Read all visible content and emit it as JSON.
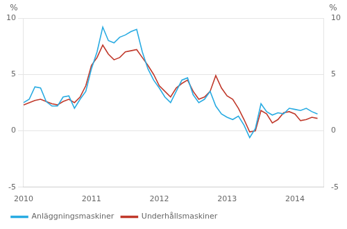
{
  "chart_data": {
    "type": "line",
    "ylabel": "%",
    "y2label": "%",
    "x": [
      2010.0,
      2010.083,
      2010.167,
      2010.25,
      2010.333,
      2010.417,
      2010.5,
      2010.583,
      2010.667,
      2010.75,
      2010.833,
      2010.917,
      2011.0,
      2011.083,
      2011.167,
      2011.25,
      2011.333,
      2011.417,
      2011.5,
      2011.583,
      2011.667,
      2011.75,
      2011.833,
      2011.917,
      2012.0,
      2012.083,
      2012.167,
      2012.25,
      2012.333,
      2012.417,
      2012.5,
      2012.583,
      2012.667,
      2012.75,
      2012.833,
      2012.917,
      2013.0,
      2013.083,
      2013.167,
      2013.25,
      2013.333,
      2013.417,
      2013.5,
      2013.583,
      2013.667,
      2013.75,
      2013.833,
      2013.917,
      2014.0,
      2014.083,
      2014.167,
      2014.25,
      2014.333
    ],
    "series": [
      {
        "name": "Anläggningsmaskiner",
        "color": "#29abe2",
        "values": [
          2.5,
          2.8,
          3.9,
          3.8,
          2.6,
          2.2,
          2.2,
          3.0,
          3.1,
          2.0,
          2.8,
          3.5,
          5.5,
          7.0,
          9.2,
          8.0,
          7.8,
          8.3,
          8.5,
          8.8,
          9.0,
          7.0,
          5.5,
          4.5,
          3.8,
          3.0,
          2.5,
          3.5,
          4.5,
          4.7,
          3.2,
          2.5,
          2.8,
          3.5,
          2.2,
          1.5,
          1.2,
          1.0,
          1.3,
          0.5,
          -0.6,
          0.2,
          2.4,
          1.7,
          1.4,
          1.6,
          1.5,
          2.0,
          1.9,
          1.8,
          2.0,
          1.7,
          1.5
        ]
      },
      {
        "name": "Underhållsmaskiner",
        "color": "#c0392b",
        "values": [
          2.3,
          2.5,
          2.7,
          2.8,
          2.6,
          2.4,
          2.3,
          2.6,
          2.8,
          2.5,
          3.0,
          4.0,
          5.8,
          6.5,
          7.6,
          6.8,
          6.3,
          6.5,
          7.0,
          7.1,
          7.2,
          6.5,
          5.8,
          5.0,
          4.0,
          3.5,
          3.0,
          3.8,
          4.2,
          4.5,
          3.5,
          2.8,
          3.0,
          3.5,
          4.9,
          3.8,
          3.1,
          2.8,
          2.0,
          1.0,
          -0.1,
          0.0,
          1.8,
          1.5,
          0.7,
          1.0,
          1.6,
          1.7,
          1.5,
          0.9,
          1.0,
          1.2,
          1.1
        ]
      }
    ],
    "xlim": [
      2010.0,
      2014.42
    ],
    "xticks": [
      2010,
      2011,
      2012,
      2013,
      2014
    ],
    "ylim": [
      -5,
      10
    ],
    "yticks": [
      -5,
      0,
      5,
      10
    ],
    "y2lim": [
      -5,
      10
    ],
    "y2ticks": [
      -5,
      0,
      5,
      10
    ],
    "grid": "y",
    "legend": "lower left"
  }
}
